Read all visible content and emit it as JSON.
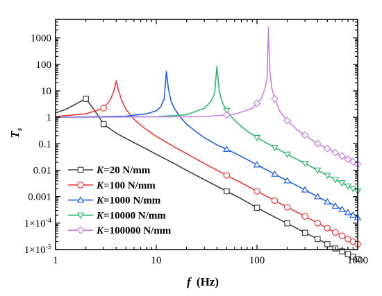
{
  "chart_data": {
    "type": "line",
    "x_scale": "log",
    "y_scale": "log",
    "xlim": [
      1,
      1000
    ],
    "ylim": [
      1e-05,
      5000
    ],
    "grid": false,
    "legend_position": "bottom-left",
    "xlabel": {
      "var": "f",
      "unit": "(Hz)"
    },
    "ylabel": {
      "var": "T",
      "sub": "s"
    },
    "x_ticks": [
      {
        "value": 1,
        "label": "1"
      },
      {
        "value": 10,
        "label": "10"
      },
      {
        "value": 100,
        "label": "100"
      },
      {
        "value": 1000,
        "label": "1000"
      }
    ],
    "y_ticks": [
      {
        "value": 1000,
        "label": "1000",
        "mant": "",
        "exp": ""
      },
      {
        "value": 100,
        "label": "100",
        "mant": "",
        "exp": ""
      },
      {
        "value": 10,
        "label": "10",
        "mant": "",
        "exp": ""
      },
      {
        "value": 1,
        "label": "1",
        "mant": "",
        "exp": ""
      },
      {
        "value": 0.1,
        "label": "0.1",
        "mant": "",
        "exp": ""
      },
      {
        "value": 0.01,
        "label": "0.01",
        "mant": "",
        "exp": ""
      },
      {
        "value": 0.001,
        "label": "0.001",
        "mant": "",
        "exp": ""
      },
      {
        "value": 0.0001,
        "label": "",
        "mant": "1×10",
        "exp": "-4"
      },
      {
        "value": 1e-05,
        "label": "",
        "mant": "1×10",
        "exp": "-5"
      }
    ],
    "series": [
      {
        "name": "K=20 N/mm",
        "legend_prefix": "K",
        "legend_suffix": "=20 N/mm",
        "color": "#404040",
        "marker": "square",
        "x": [
          1,
          1.3,
          1.6,
          1.8,
          2.0,
          2.2,
          2.5,
          3.0,
          4,
          5,
          6,
          7,
          8,
          10,
          15,
          20,
          30,
          50,
          70,
          100,
          150,
          200,
          300,
          400,
          500,
          600,
          700,
          800,
          900,
          1000
        ],
        "y": [
          1.45,
          2.1,
          3.2,
          4.1,
          5.0,
          3.1,
          1.6,
          0.55,
          0.25,
          0.16,
          0.11,
          0.082,
          0.063,
          0.04,
          0.018,
          0.0098,
          0.0044,
          0.0016,
          0.00083,
          0.00038,
          0.00017,
          9.8e-05,
          4.3e-05,
          2.5e-05,
          1.6e-05,
          1.1e-05,
          8.5e-06,
          6.7e-06,
          5.4e-06,
          4.4e-06
        ],
        "marker_x": [
          2,
          3,
          50,
          100,
          200,
          300,
          400,
          500,
          600,
          700,
          800,
          900,
          1000
        ]
      },
      {
        "name": "K=100 N/mm",
        "legend_prefix": "K",
        "legend_suffix": "=100 N/mm",
        "color": "#f03a3a",
        "marker": "circle",
        "x": [
          1,
          2,
          3,
          3.5,
          3.8,
          4.0,
          4.2,
          4.5,
          5,
          6,
          7,
          8,
          10,
          15,
          20,
          30,
          50,
          70,
          100,
          150,
          200,
          300,
          400,
          500,
          600,
          700,
          800,
          900,
          1000
        ],
        "y": [
          1.07,
          1.35,
          2.2,
          4.5,
          10,
          24,
          11,
          4.7,
          2.0,
          0.85,
          0.51,
          0.34,
          0.19,
          0.077,
          0.042,
          0.018,
          0.0064,
          0.0033,
          0.0016,
          0.00071,
          0.0004,
          0.00018,
          0.0001,
          6.4e-05,
          4.4e-05,
          3.3e-05,
          2.5e-05,
          2e-05,
          1.6e-05
        ],
        "marker_x": [
          3,
          50,
          100,
          150,
          200,
          300,
          400,
          500,
          600,
          700,
          800,
          900,
          1000
        ]
      },
      {
        "name": "K=1000 N/mm",
        "legend_prefix": "K",
        "legend_suffix": "=1000 N/mm",
        "color": "#1f5ee8",
        "marker": "triangle-up",
        "x": [
          1,
          5,
          8,
          10,
          11,
          12,
          12.6,
          13.2,
          14,
          15,
          17,
          20,
          25,
          30,
          40,
          50,
          70,
          100,
          150,
          200,
          300,
          400,
          500,
          600,
          700,
          800,
          900,
          1000
        ],
        "y": [
          1.0,
          1.1,
          1.35,
          1.75,
          2.4,
          5.0,
          55,
          12,
          4.2,
          2.3,
          1.1,
          0.55,
          0.28,
          0.17,
          0.09,
          0.062,
          0.033,
          0.016,
          0.0071,
          0.004,
          0.0018,
          0.001,
          0.00064,
          0.00044,
          0.00033,
          0.00025,
          0.0002,
          0.00016
        ],
        "marker_x": [
          50,
          100,
          150,
          200,
          300,
          400,
          500,
          600,
          700,
          800,
          900,
          1000
        ]
      },
      {
        "name": "K=10000 N/mm",
        "legend_prefix": "K",
        "legend_suffix": "=10000 N/mm",
        "color": "#2eb86a",
        "marker": "triangle-down",
        "x": [
          1,
          10,
          20,
          30,
          35,
          38,
          40,
          42,
          44,
          46,
          50,
          55,
          60,
          70,
          80,
          100,
          150,
          200,
          300,
          400,
          500,
          600,
          700,
          800,
          900,
          1000
        ],
        "y": [
          1.0,
          1.05,
          1.25,
          2.2,
          4.0,
          8.0,
          85,
          12,
          5.0,
          3.2,
          1.8,
          1.1,
          0.78,
          0.45,
          0.3,
          0.17,
          0.072,
          0.04,
          0.018,
          0.01,
          0.0064,
          0.0044,
          0.0033,
          0.0025,
          0.002,
          0.0016
        ],
        "marker_x": [
          50,
          100,
          150,
          200,
          300,
          400,
          500,
          600,
          700,
          800,
          900,
          1000
        ]
      },
      {
        "name": "K=100000 N/mm",
        "legend_prefix": "K",
        "legend_suffix": "=100000 N/mm",
        "color": "#c97fe8",
        "marker": "diamond",
        "x": [
          1,
          30,
          60,
          90,
          110,
          120,
          126,
          130,
          134,
          140,
          150,
          170,
          200,
          250,
          300,
          400,
          500,
          600,
          700,
          800,
          900,
          1000
        ],
        "y": [
          1.0,
          1.05,
          1.3,
          2.2,
          5.0,
          12,
          30,
          2500,
          60,
          13,
          5.0,
          1.6,
          0.75,
          0.34,
          0.21,
          0.1,
          0.066,
          0.046,
          0.034,
          0.026,
          0.021,
          0.017
        ],
        "marker_x": [
          50,
          100,
          150,
          200,
          300,
          400,
          500,
          600,
          700,
          800,
          900,
          1000
        ]
      }
    ]
  }
}
